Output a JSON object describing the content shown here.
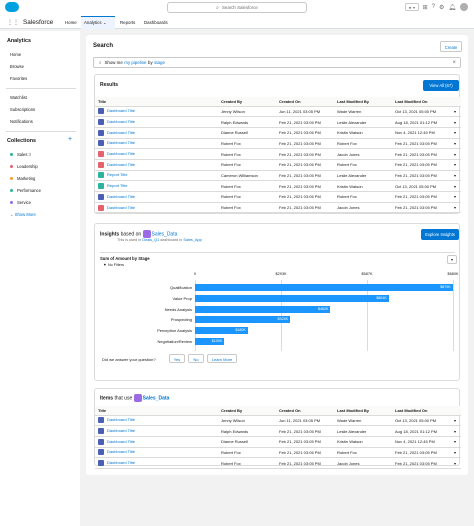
{
  "header": {
    "search_placeholder": "Search Salesforce",
    "favorites_label": "★ ▾"
  },
  "nav": {
    "app_name": "Salesforce",
    "tabs": [
      "Home",
      "Analytics",
      "Reports",
      "Dashboards"
    ]
  },
  "sidebar": {
    "analytics_heading": "Analytics",
    "items": [
      "Home",
      "Browse",
      "Favorites",
      "Watchlist",
      "Subscriptions",
      "Notifications"
    ],
    "collections_heading": "Collections",
    "add_label": "+",
    "collections": [
      {
        "label": "Sales",
        "badge": "3",
        "color": "#2bb39d"
      },
      {
        "label": "Leadership",
        "color": "#e4626c"
      },
      {
        "label": "Marketing",
        "color": "#f49e2a"
      },
      {
        "label": "Performance",
        "color": "#2bb39d"
      },
      {
        "label": "Service",
        "color": "#9c6ae4"
      }
    ],
    "show_more": "Show More"
  },
  "search_panel": {
    "title": "Search",
    "create_label": "Create",
    "query_prefix": "Show me",
    "query_link1": "my pipeline",
    "query_mid": "by",
    "query_link2": "stage",
    "clear_icon": "×"
  },
  "results": {
    "title": "Results",
    "view_all": "View All (67)",
    "columns": [
      "Title",
      "Created By",
      "Created On",
      "Last Modified By",
      "Last Modified On"
    ],
    "rows": [
      {
        "icon": "dash",
        "title": "Dashboard Title",
        "created_by": "Jenny Wilson",
        "created_on": "Jun 11, 2021 03:05 PM",
        "mod_by": "Wade Warren",
        "mod_on": "Oct 13, 2021 05:00 PM"
      },
      {
        "icon": "dash",
        "title": "Dashboard Title",
        "created_by": "Ralph Edwards",
        "created_on": "Feb 21, 2021 03:05 PM",
        "mod_by": "Leslie Alexander",
        "mod_on": "Aug 18, 2021 01:12 PM"
      },
      {
        "icon": "dash",
        "title": "Dashboard Title",
        "created_by": "Dianne Russell",
        "created_on": "Feb 21, 2021 03:05 PM",
        "mod_by": "Kristin Watson",
        "mod_on": "Nov 4, 2021 12:45 PM"
      },
      {
        "icon": "dash",
        "title": "Dashboard Title",
        "created_by": "Robert Fox",
        "created_on": "Feb 21, 2021 03:05 PM",
        "mod_by": "Robert Fox",
        "mod_on": "Feb 21, 2021 03:05 PM"
      },
      {
        "icon": "err",
        "title": "Dashboard Title",
        "created_by": "Robert Fox",
        "created_on": "Feb 21, 2021 03:05 PM",
        "mod_by": "Jacob Jones",
        "mod_on": "Feb 21, 2021 03:05 PM"
      },
      {
        "icon": "err",
        "title": "Dashboard Title",
        "created_by": "Robert Fox",
        "created_on": "Feb 21, 2021 03:05 PM",
        "mod_by": "Robert Fox",
        "mod_on": "Feb 21, 2021 03:05 PM"
      },
      {
        "icon": "rep",
        "title": "Report Title",
        "created_by": "Cameron Williamson",
        "created_on": "Feb 21, 2021 03:05 PM",
        "mod_by": "Leslie Alexander",
        "mod_on": "Feb 21, 2021 03:05 PM"
      },
      {
        "icon": "rep",
        "title": "Report Title",
        "created_by": "Robert Fox",
        "created_on": "Feb 21, 2021 03:05 PM",
        "mod_by": "Kristin Watson",
        "mod_on": "Oct 13, 2021 05:00 PM"
      },
      {
        "icon": "dash",
        "title": "Dashboard Title",
        "created_by": "Robert Fox",
        "created_on": "Feb 21, 2021 03:05 PM",
        "mod_by": "Robert Fox",
        "mod_on": "Feb 21, 2021 03:05 PM"
      },
      {
        "icon": "err",
        "title": "Dashboard Title",
        "created_by": "Robert Fox",
        "created_on": "Feb 21, 2021 03:05 PM",
        "mod_by": "Jacob Jones",
        "mod_on": "Feb 21, 2021 03:05 PM"
      }
    ]
  },
  "insights": {
    "title_prefix": "Insights",
    "based_on": "based on",
    "dataset": "Sales_Data",
    "subtitle_prefix": "This is used in",
    "subtitle_link1": "Deals_Q1",
    "subtitle_mid": "dashboard in",
    "subtitle_link2": "Sales_App",
    "explore_label": "Explore Insights",
    "chart_heading": "Sum of Amount by Stage",
    "filter_label": "No Filters",
    "feedback_question": "Did we answer your question?",
    "yes": "Yes",
    "no": "No",
    "learn_more": "Learn More"
  },
  "chart_data": {
    "type": "bar",
    "orientation": "horizontal",
    "title": "Sum of Amount by Stage",
    "categories": [
      "Qualification",
      "Value Prop",
      "Needs Analysis",
      "Prospecting",
      "Perception Analysis",
      "Negotiation/Review"
    ],
    "values": [
      879,
      661,
      462,
      324,
      180,
      100
    ],
    "value_labels": [
      "$879K",
      "$661K",
      "$462K",
      "$324K",
      "$180K",
      "$100K"
    ],
    "tick_labels": [
      "0",
      "$293K",
      "$587K",
      "$880K"
    ],
    "xlim": [
      0,
      880
    ]
  },
  "items": {
    "title_prefix": "Items",
    "that_use": "that use",
    "dataset": "Sales_Data",
    "columns": [
      "Title",
      "Created By",
      "Created On",
      "Last Modified By",
      "Last Modified On"
    ],
    "rows": [
      {
        "icon": "dash",
        "title": "Dashboard Title",
        "created_by": "Jenny Wilson",
        "created_on": "Jun 11, 2021 03:05 PM",
        "mod_by": "Wade Warren",
        "mod_on": "Oct 13, 2021 05:00 PM"
      },
      {
        "icon": "dash",
        "title": "Dashboard Title",
        "created_by": "Ralph Edwards",
        "created_on": "Feb 21, 2021 03:05 PM",
        "mod_by": "Leslie Alexander",
        "mod_on": "Aug 18, 2021 01:12 PM"
      },
      {
        "icon": "dash",
        "title": "Dashboard Title",
        "created_by": "Dianne Russell",
        "created_on": "Feb 21, 2021 03:05 PM",
        "mod_by": "Kristin Watson",
        "mod_on": "Nov 4, 2021 12:45 PM"
      },
      {
        "icon": "dash",
        "title": "Dashboard Title",
        "created_by": "Robert Fox",
        "created_on": "Feb 21, 2021 03:05 PM",
        "mod_by": "Robert Fox",
        "mod_on": "Feb 21, 2021 03:05 PM"
      },
      {
        "icon": "dash",
        "title": "Dashboard Title",
        "created_by": "Robert Fox",
        "created_on": "Feb 21, 2021 03:05 PM",
        "mod_by": "Jacob Jones",
        "mod_on": "Feb 21, 2021 03:05 PM"
      }
    ]
  }
}
